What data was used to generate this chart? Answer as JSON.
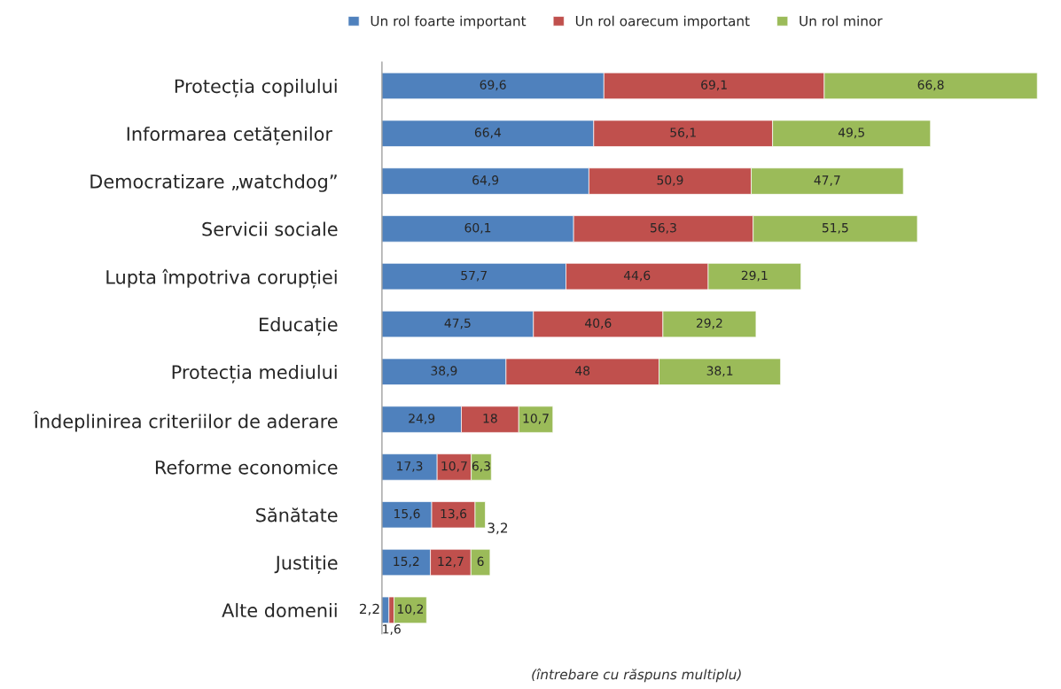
{
  "chart_data": {
    "type": "bar",
    "orientation": "horizontal",
    "stacked": true,
    "legend": "top",
    "grid": false,
    "tick_labels": "y",
    "categories": [
      "Protecția copilului",
      "Informarea cetățenilor ",
      "Democratizare „watchdog”",
      "Servicii sociale",
      "Lupta împotriva corupției",
      "Educație",
      "Protecția mediului",
      "Îndeplinirea criteriilor de aderare",
      "Reforme economice",
      "Sănătate",
      "Justiție",
      "Alte domenii"
    ],
    "series": [
      {
        "name": "Un rol foarte important",
        "color": "#4f81bd",
        "values": [
          69.6,
          66.4,
          64.9,
          60.1,
          57.7,
          47.5,
          38.9,
          24.9,
          17.3,
          15.6,
          15.2,
          2.2
        ],
        "value_labels": [
          "69,6",
          "66,4",
          "64,9",
          "60,1",
          "57,7",
          "47,5",
          "38,9",
          "24,9",
          "17,3",
          "15,6",
          "15,2",
          "2,2"
        ]
      },
      {
        "name": "Un rol oarecum important",
        "color": "#c0504d",
        "values": [
          69.1,
          56.1,
          50.9,
          56.3,
          44.6,
          40.6,
          48,
          18,
          10.7,
          13.6,
          12.7,
          1.6
        ],
        "value_labels": [
          "69,1",
          "56,1",
          "50,9",
          "56,3",
          "44,6",
          "40,6",
          "48",
          "18",
          "10,7",
          "13,6",
          "12,7",
          "1,6"
        ]
      },
      {
        "name": "Un rol minor",
        "color": "#9bbb59",
        "values": [
          66.8,
          49.5,
          47.7,
          51.5,
          29.1,
          29.2,
          38.1,
          10.7,
          6.3,
          3.2,
          6,
          10.2
        ],
        "value_labels": [
          "66,8",
          "49,5",
          "47,7",
          "51,5",
          "29,1",
          "29,2",
          "38,1",
          "10,7",
          "6,3",
          "3,2",
          "6",
          "10,2"
        ]
      }
    ],
    "annotations": [
      "(întrebare cu răspuns multiplu)"
    ]
  }
}
